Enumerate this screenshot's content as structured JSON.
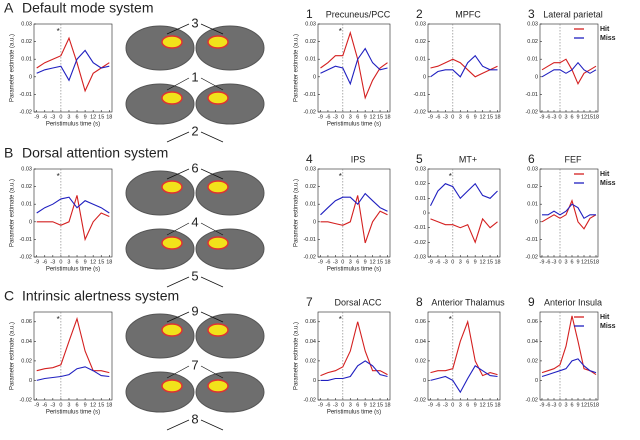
{
  "rows": [
    {
      "letter": "A",
      "title": "Default mode system",
      "brain_labels": [
        "3",
        "1",
        "2"
      ]
    },
    {
      "letter": "B",
      "title": "Dorsal attention system",
      "brain_labels": [
        "6",
        "4",
        "5"
      ]
    },
    {
      "letter": "C",
      "title": "Intrinsic alertness system",
      "brain_labels": [
        "9",
        "7",
        "8"
      ]
    }
  ],
  "chart_data": [
    {
      "type": "line",
      "annotation": "*",
      "ylabel": "Parameter estimate (a.u.)",
      "xlabel": "Peristimulus time (s)",
      "x": [
        -9,
        -6,
        -3,
        0,
        3,
        6,
        9,
        12,
        15,
        18
      ],
      "xlim": [
        -10,
        19
      ],
      "xticks": [
        -9,
        -6,
        -3,
        0,
        3,
        6,
        9,
        12,
        15,
        18
      ],
      "ylim": [
        -0.02,
        0.03
      ],
      "yticks": [
        -0.02,
        -0.01,
        0,
        0.01,
        0.02,
        0.03
      ],
      "series": [
        {
          "color": "#d42020",
          "values": [
            0.005,
            0.008,
            0.01,
            0.012,
            0.022,
            0.008,
            -0.008,
            0.002,
            0.005,
            0.008
          ]
        },
        {
          "color": "#2020c0",
          "values": [
            0.002,
            0.004,
            0.005,
            0.006,
            -0.002,
            0.01,
            0.015,
            0.008,
            0.005,
            0.006
          ]
        }
      ]
    },
    {
      "type": "line",
      "number": "1",
      "title": "Precuneus/PCC",
      "annotation": "*",
      "ylabel": "Parameter estimate (a.u.)",
      "xlabel": "Peristimulus time (s)",
      "x": [
        -9,
        -6,
        -3,
        0,
        3,
        6,
        9,
        12,
        15,
        18
      ],
      "xlim": [
        -10,
        19
      ],
      "xticks": [
        -9,
        -6,
        -3,
        0,
        3,
        6,
        9,
        12,
        15,
        18
      ],
      "ylim": [
        -0.02,
        0.03
      ],
      "yticks": [
        -0.02,
        -0.01,
        0,
        0.01,
        0.02,
        0.03
      ],
      "series": [
        {
          "color": "#d42020",
          "values": [
            0.005,
            0.008,
            0.012,
            0.012,
            0.025,
            0.01,
            -0.012,
            -0.002,
            0.005,
            0.008
          ]
        },
        {
          "color": "#2020c0",
          "values": [
            0.002,
            0.004,
            0.006,
            0.005,
            -0.004,
            0.01,
            0.016,
            0.008,
            0.004,
            0.005
          ]
        }
      ]
    },
    {
      "type": "line",
      "number": "2",
      "title": "MPFC",
      "x": [
        -9,
        -6,
        -3,
        0,
        3,
        6,
        9,
        12,
        15,
        18
      ],
      "xlim": [
        -10,
        19
      ],
      "xticks": [
        -9,
        -6,
        -3,
        0,
        3,
        6,
        9,
        12,
        15,
        18
      ],
      "ylim": [
        -0.02,
        0.03
      ],
      "yticks": [
        -0.02,
        -0.01,
        0,
        0.01,
        0.02,
        0.03
      ],
      "series": [
        {
          "color": "#d42020",
          "values": [
            0.005,
            0.006,
            0.008,
            0.01,
            0.008,
            0.004,
            0,
            0.002,
            0.004,
            0.006
          ]
        },
        {
          "color": "#2020c0",
          "values": [
            0,
            0.003,
            0.004,
            0.004,
            0,
            0.008,
            0.012,
            0.006,
            0.004,
            0.004
          ]
        }
      ]
    },
    {
      "type": "line",
      "number": "3",
      "title": "Lateral parietal",
      "legend": "upper right",
      "x": [
        -9,
        -6,
        -3,
        0,
        3,
        6,
        9,
        12,
        15,
        18
      ],
      "xlim": [
        -10,
        19
      ],
      "xticks": [
        -9,
        -6,
        -3,
        0,
        3,
        6,
        9,
        12,
        15,
        18
      ],
      "ylim": [
        -0.02,
        0.03
      ],
      "yticks": [
        -0.02,
        -0.01,
        0,
        0.01,
        0.02,
        0.03
      ],
      "series": [
        {
          "name": "Hit",
          "color": "#d42020",
          "values": [
            0.004,
            0.006,
            0.008,
            0.008,
            0.01,
            0.004,
            -0.004,
            0.002,
            0.004,
            0.006
          ]
        },
        {
          "name": "Miss",
          "color": "#2020c0",
          "values": [
            0,
            0.002,
            0.004,
            0.004,
            0.002,
            0.004,
            0.008,
            0.004,
            0.002,
            0.004
          ]
        }
      ]
    },
    {
      "type": "line",
      "annotation": "*",
      "ylabel": "Parameter estimate (a.u.)",
      "xlabel": "Peristimulus time (s)",
      "x": [
        -9,
        -6,
        -3,
        0,
        3,
        6,
        9,
        12,
        15,
        18
      ],
      "xlim": [
        -10,
        19
      ],
      "xticks": [
        -9,
        -6,
        -3,
        0,
        3,
        6,
        9,
        12,
        15,
        18
      ],
      "ylim": [
        -0.02,
        0.03
      ],
      "yticks": [
        -0.02,
        -0.01,
        0,
        0.01,
        0.02,
        0.03
      ],
      "series": [
        {
          "color": "#d42020",
          "values": [
            0,
            0,
            0,
            -0.002,
            0,
            0.015,
            -0.01,
            0,
            0.005,
            0.003
          ]
        },
        {
          "color": "#2020c0",
          "values": [
            0.005,
            0.008,
            0.01,
            0.013,
            0.014,
            0.008,
            0.012,
            0.01,
            0.008,
            0.005
          ]
        }
      ]
    },
    {
      "type": "line",
      "number": "4",
      "title": "IPS",
      "annotation": "*",
      "ylabel": "Parameter estimate (a.u.)",
      "xlabel": "Peristimulus time (s)",
      "x": [
        -9,
        -6,
        -3,
        0,
        3,
        6,
        9,
        12,
        15,
        18
      ],
      "xlim": [
        -10,
        19
      ],
      "xticks": [
        -9,
        -6,
        -3,
        0,
        3,
        6,
        9,
        12,
        15,
        18
      ],
      "ylim": [
        -0.02,
        0.03
      ],
      "yticks": [
        -0.02,
        -0.01,
        0,
        0.01,
        0.02,
        0.03
      ],
      "series": [
        {
          "color": "#d42020",
          "values": [
            0,
            0,
            -0.001,
            -0.002,
            0,
            0.015,
            -0.012,
            0,
            0.006,
            0.004
          ]
        },
        {
          "color": "#2020c0",
          "values": [
            0.004,
            0.008,
            0.012,
            0.014,
            0.014,
            0.01,
            0.016,
            0.012,
            0.008,
            0.006
          ]
        }
      ]
    },
    {
      "type": "line",
      "number": "5",
      "title": "MT+",
      "annotation": "*",
      "x": [
        -9,
        -6,
        -3,
        0,
        3,
        6,
        9,
        12,
        15,
        18
      ],
      "xlim": [
        -10,
        19
      ],
      "xticks": [
        -9,
        -6,
        -3,
        0,
        3,
        6,
        9,
        12,
        15,
        18
      ],
      "ylim": [
        -0.03,
        0.03
      ],
      "yticks": [
        -0.03,
        -0.02,
        -0.01,
        0,
        0.01,
        0.02,
        0.03
      ],
      "series": [
        {
          "color": "#d42020",
          "values": [
            -0.004,
            -0.006,
            -0.008,
            -0.008,
            -0.01,
            -0.008,
            -0.02,
            -0.004,
            -0.01,
            -0.006
          ]
        },
        {
          "color": "#2020c0",
          "values": [
            0.005,
            0.015,
            0.02,
            0.018,
            0.01,
            0.015,
            0.02,
            0.012,
            0.01,
            0.015
          ]
        }
      ]
    },
    {
      "type": "line",
      "number": "6",
      "title": "FEF",
      "legend": "upper right",
      "x": [
        -9,
        -6,
        -3,
        0,
        3,
        6,
        9,
        12,
        15,
        18
      ],
      "xlim": [
        -10,
        19
      ],
      "xticks": [
        -9,
        -6,
        -3,
        0,
        3,
        6,
        9,
        12,
        15,
        18
      ],
      "ylim": [
        -0.02,
        0.03
      ],
      "yticks": [
        -0.02,
        -0.01,
        0,
        0.01,
        0.02,
        0.03
      ],
      "series": [
        {
          "name": "Hit",
          "color": "#d42020",
          "values": [
            0,
            0.002,
            0.004,
            0.002,
            0.004,
            0.012,
            0,
            -0.004,
            0.002,
            0.004
          ]
        },
        {
          "name": "Miss",
          "color": "#2020c0",
          "values": [
            0.004,
            0.004,
            0.006,
            0.004,
            0.006,
            0.01,
            0.008,
            0.002,
            0.004,
            0.004
          ]
        }
      ]
    },
    {
      "type": "line",
      "annotation": "*",
      "ylabel": "Parameter estimate (a.u.)",
      "xlabel": "Peristimulus time (s)",
      "x": [
        -9,
        -6,
        -3,
        0,
        3,
        6,
        9,
        12,
        15,
        18
      ],
      "xlim": [
        -10,
        19
      ],
      "xticks": [
        -9,
        -6,
        -3,
        0,
        3,
        6,
        9,
        12,
        15,
        18
      ],
      "ylim": [
        -0.02,
        0.07
      ],
      "yticks": [
        -0.02,
        0,
        0.02,
        0.04,
        0.06
      ],
      "series": [
        {
          "color": "#d42020",
          "values": [
            0.01,
            0.012,
            0.013,
            0.016,
            0.04,
            0.063,
            0.03,
            0.01,
            0.01,
            0.008
          ]
        },
        {
          "color": "#2020c0",
          "values": [
            0,
            0.002,
            0.003,
            0.004,
            0.006,
            0.012,
            0.014,
            0.01,
            0.005,
            0.004
          ]
        }
      ]
    },
    {
      "type": "line",
      "number": "7",
      "title": "Dorsal ACC",
      "annotation": "*",
      "ylabel": "Parameter estimate (a.u.)",
      "xlabel": "Peristimulus time (s)",
      "x": [
        -9,
        -6,
        -3,
        0,
        3,
        6,
        9,
        12,
        15,
        18
      ],
      "xlim": [
        -10,
        19
      ],
      "xticks": [
        -9,
        -6,
        -3,
        0,
        3,
        6,
        9,
        12,
        15,
        18
      ],
      "ylim": [
        -0.02,
        0.07
      ],
      "yticks": [
        -0.02,
        0,
        0.02,
        0.04,
        0.06
      ],
      "series": [
        {
          "color": "#d42020",
          "values": [
            0.005,
            0.008,
            0.01,
            0.014,
            0.03,
            0.06,
            0.03,
            0.01,
            0.01,
            0.006
          ]
        },
        {
          "color": "#2020c0",
          "values": [
            0,
            0,
            0.002,
            0.002,
            0.004,
            0.015,
            0.02,
            0.015,
            0.006,
            0.004
          ]
        }
      ]
    },
    {
      "type": "line",
      "number": "8",
      "title": "Anterior Thalamus",
      "annotation": "*",
      "x": [
        -9,
        -6,
        -3,
        0,
        3,
        6,
        9,
        12,
        15,
        18
      ],
      "xlim": [
        -10,
        19
      ],
      "xticks": [
        -9,
        -6,
        -3,
        0,
        3,
        6,
        9,
        12,
        15,
        18
      ],
      "ylim": [
        -0.02,
        0.07
      ],
      "yticks": [
        -0.02,
        0,
        0.02,
        0.04,
        0.06
      ],
      "series": [
        {
          "color": "#d42020",
          "values": [
            0.008,
            0.01,
            0.01,
            0.012,
            0.04,
            0.06,
            0.02,
            0.005,
            0.008,
            0.006
          ]
        },
        {
          "color": "#2020c0",
          "values": [
            0,
            0.002,
            0.004,
            0,
            -0.012,
            0.002,
            0.015,
            0.01,
            0.005,
            0.004
          ]
        }
      ]
    },
    {
      "type": "line",
      "number": "9",
      "title": "Anterior Insula",
      "legend": "upper right",
      "x": [
        -9,
        -6,
        -3,
        0,
        3,
        6,
        9,
        12,
        15,
        18
      ],
      "xlim": [
        -10,
        19
      ],
      "xticks": [
        -9,
        -6,
        -3,
        0,
        3,
        6,
        9,
        12,
        15,
        18
      ],
      "ylim": [
        -0.02,
        0.07
      ],
      "yticks": [
        -0.02,
        0,
        0.02,
        0.04,
        0.06
      ],
      "series": [
        {
          "name": "Hit",
          "color": "#d42020",
          "values": [
            0.008,
            0.01,
            0.012,
            0.016,
            0.035,
            0.066,
            0.04,
            0.012,
            0.01,
            0.006
          ]
        },
        {
          "name": "Miss",
          "color": "#2020c0",
          "values": [
            0.004,
            0.006,
            0.008,
            0.01,
            0.012,
            0.02,
            0.022,
            0.015,
            0.01,
            0.008
          ]
        }
      ]
    }
  ]
}
